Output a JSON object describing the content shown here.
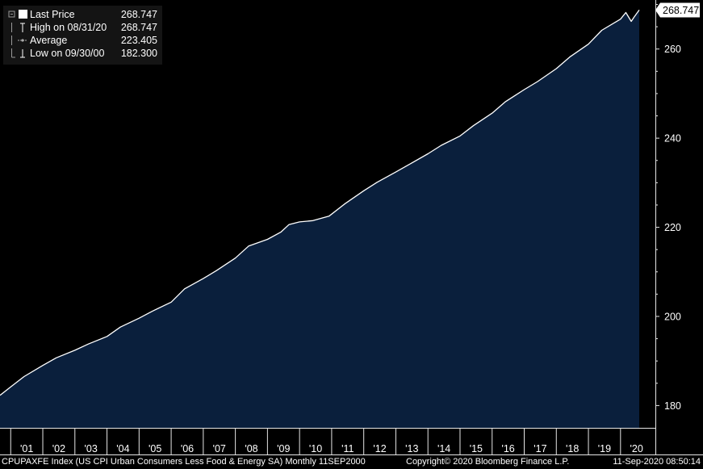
{
  "chart_data": {
    "type": "area",
    "title": "",
    "xlabel": "",
    "ylabel": "",
    "ylim": [
      175,
      271
    ],
    "yticks": [
      180,
      200,
      220,
      240,
      260
    ],
    "x_tick_labels": [
      "'01",
      "'02",
      "'03",
      "'04",
      "'05",
      "'06",
      "'07",
      "'08",
      "'09",
      "'10",
      "'11",
      "'12",
      "'13",
      "'14",
      "'15",
      "'16",
      "'17",
      "'18",
      "'19",
      "'20"
    ],
    "grid": false,
    "legend_placement": "top-left",
    "series": [
      {
        "name": "Last Price",
        "frequency": "monthly",
        "x": [
          "2000-09",
          "2001-01",
          "2001-06",
          "2002-01",
          "2002-06",
          "2003-01",
          "2003-06",
          "2004-01",
          "2004-06",
          "2005-01",
          "2005-06",
          "2006-01",
          "2006-06",
          "2007-01",
          "2007-06",
          "2008-01",
          "2008-06",
          "2009-01",
          "2009-06",
          "2009-09",
          "2010-01",
          "2010-06",
          "2010-12",
          "2011-06",
          "2012-01",
          "2012-06",
          "2013-01",
          "2013-06",
          "2014-01",
          "2014-06",
          "2015-01",
          "2015-06",
          "2016-01",
          "2016-06",
          "2017-01",
          "2017-06",
          "2018-01",
          "2018-06",
          "2019-01",
          "2019-06",
          "2020-01",
          "2020-03",
          "2020-05",
          "2020-06",
          "2020-08"
        ],
        "values": [
          182.3,
          184.2,
          186.5,
          189.0,
          190.7,
          192.4,
          193.8,
          195.5,
          197.6,
          199.6,
          201.2,
          203.2,
          206.2,
          208.5,
          210.3,
          213.1,
          215.8,
          217.3,
          218.9,
          220.6,
          221.2,
          221.5,
          222.5,
          225.3,
          228.2,
          230.1,
          232.4,
          234.1,
          236.5,
          238.4,
          240.5,
          242.8,
          245.6,
          248.2,
          250.9,
          252.7,
          255.6,
          258.2,
          261.1,
          264.2,
          266.7,
          268.2,
          266.2,
          267.1,
          268.747
        ]
      }
    ],
    "colors": {
      "area_fill": "#0a1f3c",
      "line": "#ffffff",
      "background": "#000000"
    }
  },
  "legend": {
    "rows": [
      {
        "label": "Last Price",
        "value": "268.747"
      },
      {
        "label": "High on 08/31/20",
        "value": "268.747"
      },
      {
        "label": "Average",
        "value": "223.405"
      },
      {
        "label": "Low on 09/30/00",
        "value": "182.300"
      }
    ]
  },
  "last_price_tag": "268.747",
  "footer": {
    "left": "CPUPAXFE Index (US CPI Urban Consumers Less Food & Energy SA)  Monthly 11SEP2000",
    "center": "Copyright© 2020 Bloomberg Finance L.P.",
    "right": "11-Sep-2020 08:50:14"
  }
}
